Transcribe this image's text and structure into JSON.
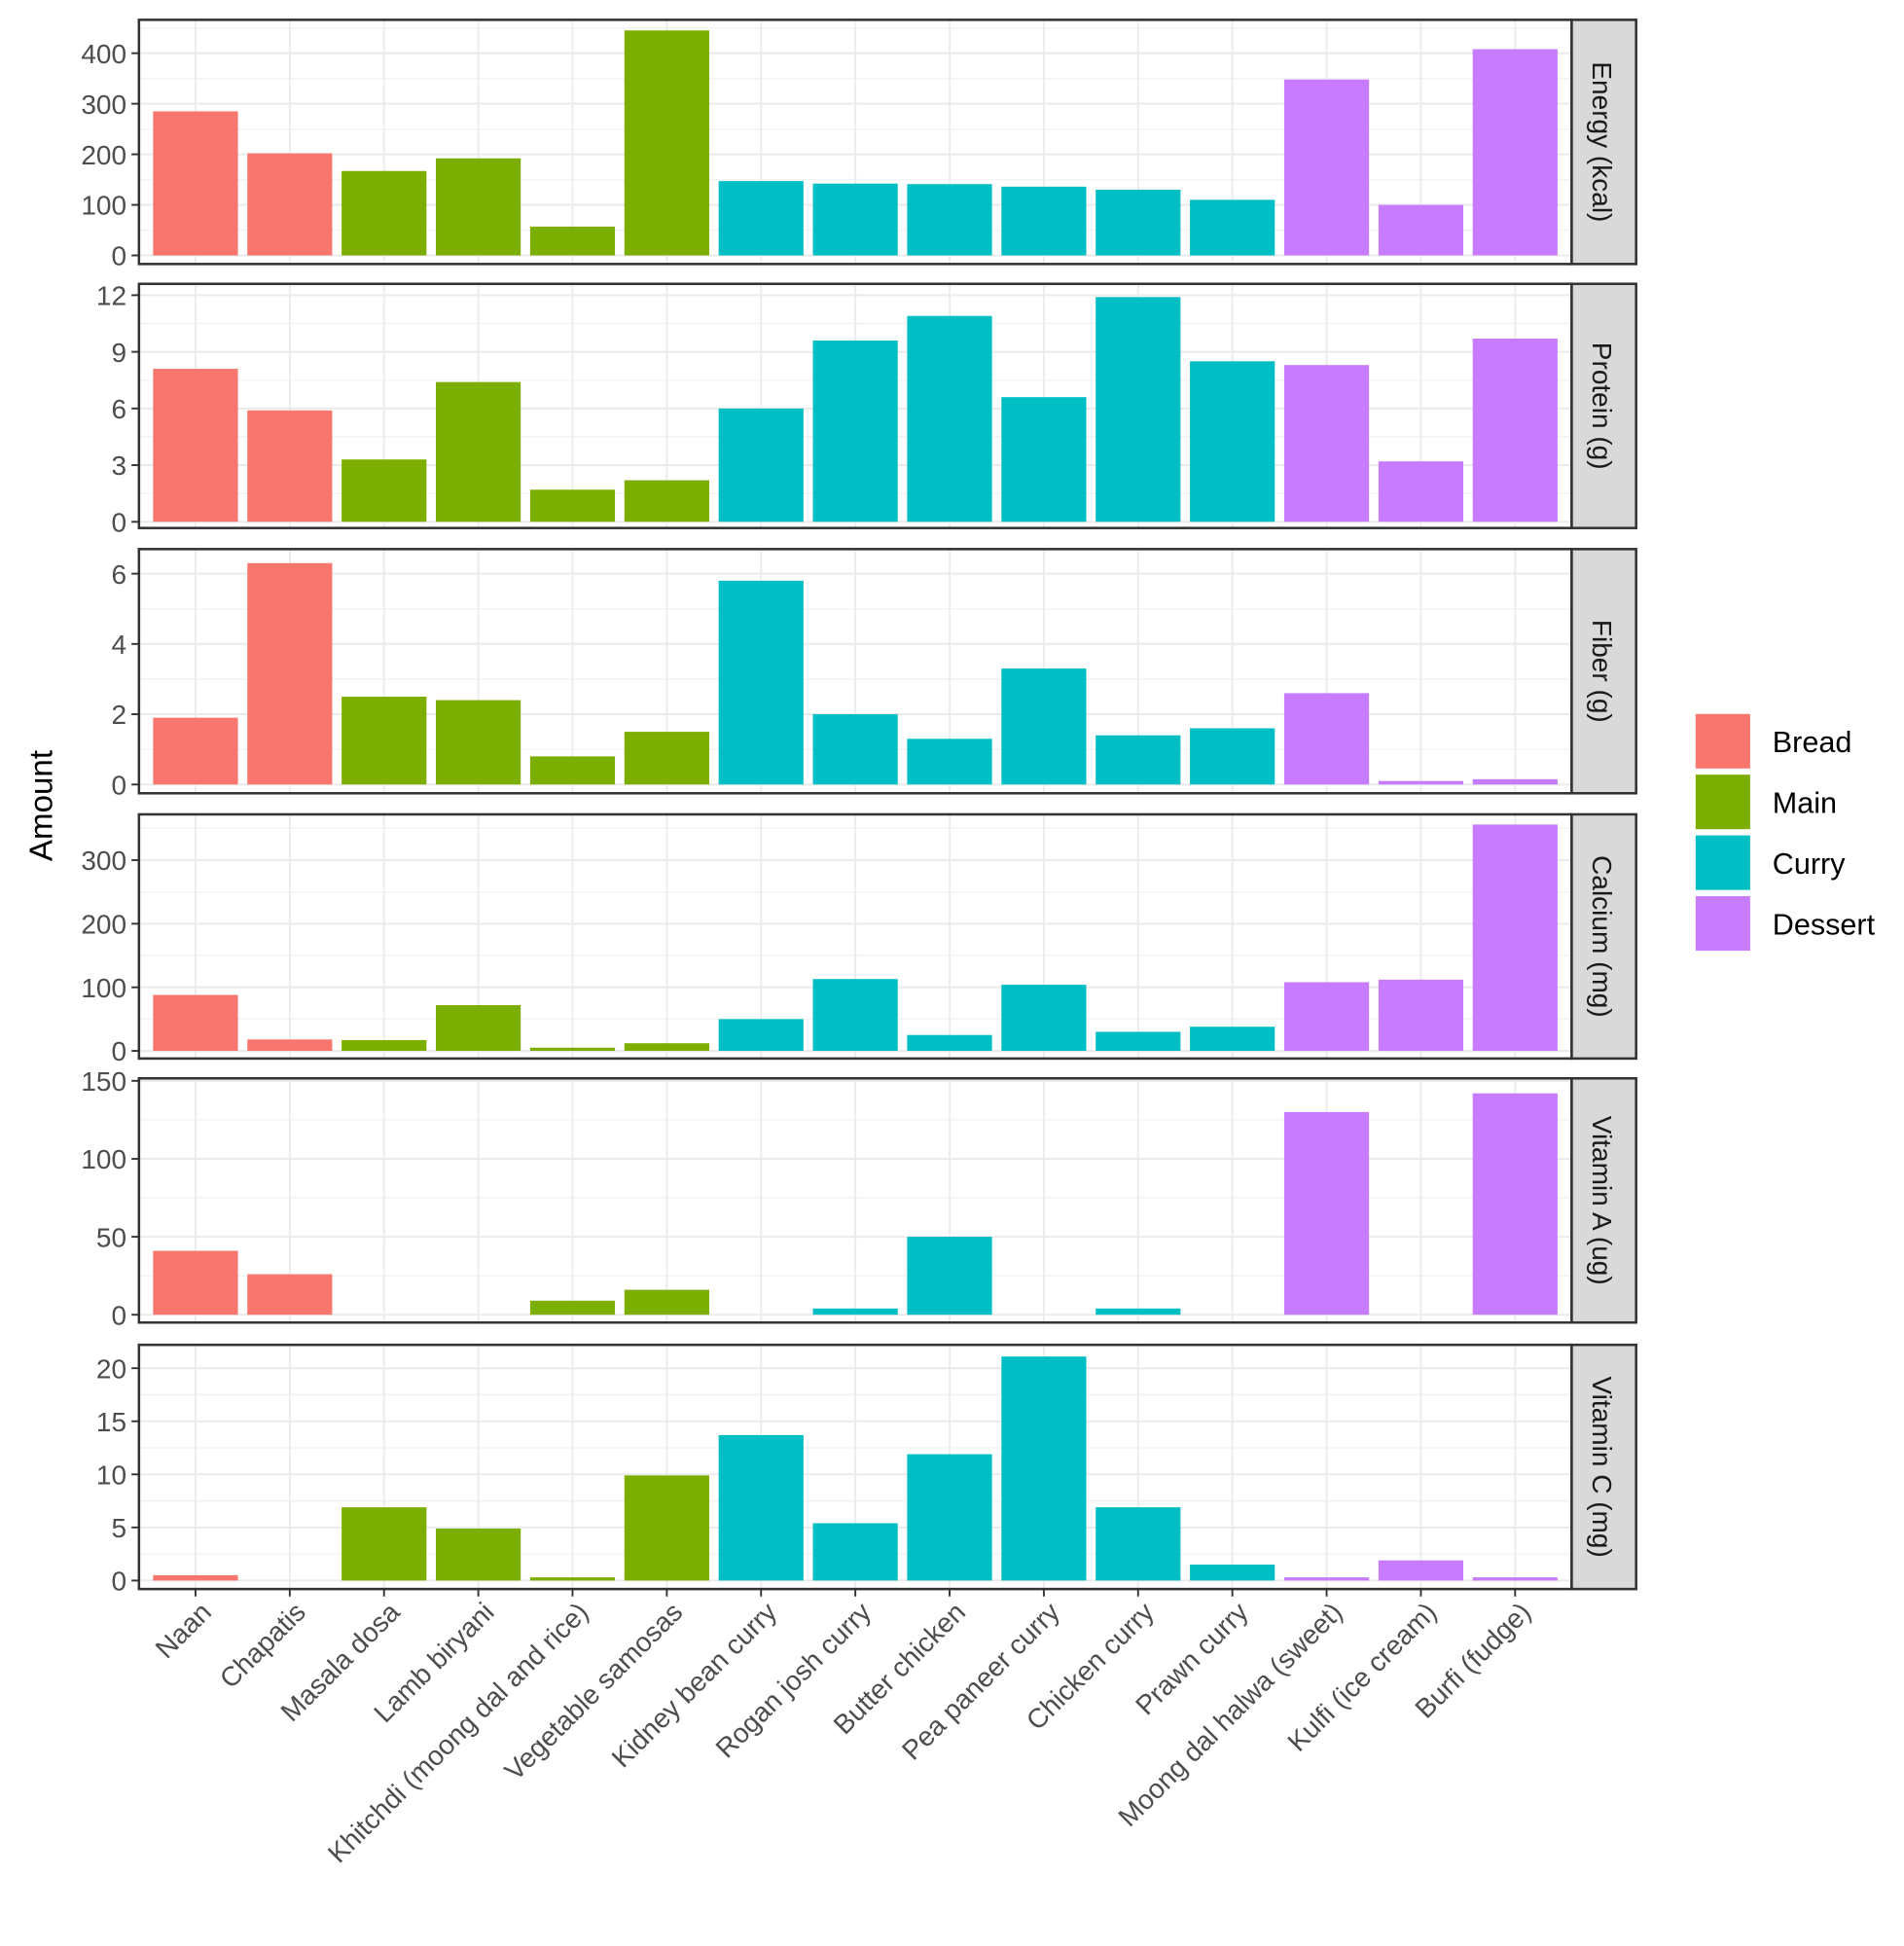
{
  "chart_data": {
    "type": "bar",
    "ylabel": "Amount",
    "xlabel": "",
    "grid": true,
    "legend_position": "right",
    "categories": [
      "Naan",
      "Chapatis",
      "Masala dosa",
      "Lamb biryani",
      "Khitchdi (moong dal and rice)",
      "Vegetable samosas",
      "Kidney bean curry",
      "Rogan josh curry",
      "Butter chicken",
      "Pea paneer curry",
      "Chicken curry",
      "Prawn curry",
      "Moong dal halwa (sweet)",
      "Kulfi (ice cream)",
      "Burfi (fudge)"
    ],
    "groups": [
      "Bread",
      "Bread",
      "Main",
      "Main",
      "Main",
      "Main",
      "Curry",
      "Curry",
      "Curry",
      "Curry",
      "Curry",
      "Curry",
      "Dessert",
      "Dessert",
      "Dessert"
    ],
    "legend": [
      {
        "name": "Bread",
        "color": "#F8766D"
      },
      {
        "name": "Main",
        "color": "#7CAE00"
      },
      {
        "name": "Curry",
        "color": "#00BFC4"
      },
      {
        "name": "Dessert",
        "color": "#C77CFF"
      }
    ],
    "panels": [
      {
        "name": "Energy (kcal)",
        "ylim": [
          -17,
          466
        ],
        "ticks": [
          0,
          100,
          200,
          300,
          400
        ],
        "values": [
          285,
          202,
          167,
          192,
          57,
          445,
          147,
          142,
          141,
          136,
          130,
          110,
          348,
          100,
          408
        ]
      },
      {
        "name": "Protein (g)",
        "ylim": [
          -0.33,
          12.6
        ],
        "ticks": [
          0,
          3,
          6,
          9,
          12
        ],
        "values": [
          8.1,
          5.9,
          3.3,
          7.4,
          1.7,
          2.2,
          6.0,
          9.6,
          10.9,
          6.6,
          11.9,
          8.5,
          8.3,
          3.2,
          9.7
        ]
      },
      {
        "name": "Fiber (g)",
        "ylim": [
          -0.25,
          6.7
        ],
        "ticks": [
          0,
          2,
          4,
          6
        ],
        "values": [
          1.9,
          6.3,
          2.5,
          2.4,
          0.8,
          1.5,
          5.8,
          2.0,
          1.3,
          3.3,
          1.4,
          1.6,
          2.6,
          0.1,
          0.15
        ]
      },
      {
        "name": "Calcium (mg)",
        "ylim": [
          -12,
          372
        ],
        "ticks": [
          0,
          100,
          200,
          300
        ],
        "values": [
          88,
          18,
          17,
          72,
          5,
          12,
          50,
          113,
          25,
          104,
          30,
          38,
          108,
          112,
          356
        ]
      },
      {
        "name": "Vitamin A (ug)",
        "ylim": [
          -5,
          151.6
        ],
        "ticks": [
          0,
          50,
          100,
          150
        ],
        "values": [
          41,
          26,
          0,
          0,
          9,
          16,
          0,
          4,
          50,
          0,
          4,
          0,
          130,
          0,
          142
        ]
      },
      {
        "name": "Vitamin C (mg)",
        "ylim": [
          -0.8,
          22.2
        ],
        "ticks": [
          0,
          5,
          10,
          15,
          20
        ],
        "values": [
          0.5,
          0,
          6.9,
          4.9,
          0.3,
          9.9,
          13.7,
          5.4,
          11.9,
          21.1,
          6.9,
          1.5,
          0.3,
          1.9,
          0.3
        ]
      }
    ]
  }
}
